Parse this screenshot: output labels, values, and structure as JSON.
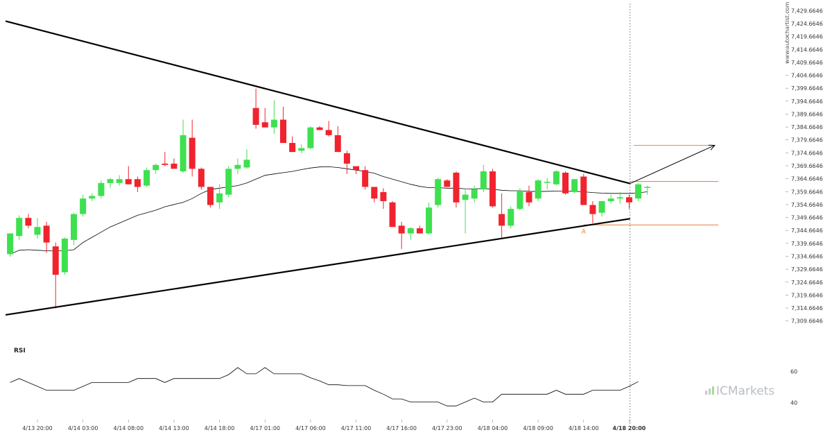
{
  "chart_data": {
    "type": "candlestick",
    "price_ticks": [
      "7,429.6646",
      "7,424.6646",
      "7,419.6646",
      "7,414.6646",
      "7,409.6646",
      "7,404.6646",
      "7,399.6646",
      "7,394.6646",
      "7,389.6646",
      "7,384.6646",
      "7,379.6646",
      "7,374.6646",
      "7,369.6646",
      "7,364.6646",
      "7,359.6646",
      "7,354.6646",
      "7,349.6646",
      "7,344.6646",
      "7,339.6646",
      "7,334.6646",
      "7,329.6646",
      "7,324.6646",
      "7,319.6646",
      "7,314.6646",
      "7,309.6646"
    ],
    "ylim": [
      7307.7,
      7431.9
    ],
    "time_labels": [
      {
        "label": "4/13 20:00",
        "index": 3
      },
      {
        "label": "4/14 03:00",
        "index": 8
      },
      {
        "label": "4/14 08:00",
        "index": 13
      },
      {
        "label": "4/14 13:00",
        "index": 18
      },
      {
        "label": "4/14 18:00",
        "index": 23
      },
      {
        "label": "4/17 01:00",
        "index": 28
      },
      {
        "label": "4/17 06:00",
        "index": 33
      },
      {
        "label": "4/17 11:00",
        "index": 38
      },
      {
        "label": "4/17 16:00",
        "index": 43
      },
      {
        "label": "4/17 23:00",
        "index": 48
      },
      {
        "label": "4/18 04:00",
        "index": 53
      },
      {
        "label": "4/18 09:00",
        "index": 58
      },
      {
        "label": "4/18 14:00",
        "index": 63
      },
      {
        "label": "4/18 20:00",
        "index": 68,
        "bold": true
      }
    ],
    "candles": [
      {
        "o": 7335.5,
        "h": 7343.5,
        "l": 7334.5,
        "c": 7343.5
      },
      {
        "o": 7342.5,
        "h": 7350.5,
        "l": 7341.0,
        "c": 7349.5
      },
      {
        "o": 7349.5,
        "h": 7351.0,
        "l": 7345.5,
        "c": 7346.5
      },
      {
        "o": 7343.0,
        "h": 7349.5,
        "l": 7341.5,
        "c": 7346.0
      },
      {
        "o": 7346.5,
        "h": 7348.0,
        "l": 7336.0,
        "c": 7340.0
      },
      {
        "o": 7338.5,
        "h": 7340.0,
        "l": 7314.5,
        "c": 7327.5
      },
      {
        "o": 7328.5,
        "h": 7342.0,
        "l": 7327.5,
        "c": 7341.5
      },
      {
        "o": 7341.0,
        "h": 7351.5,
        "l": 7339.0,
        "c": 7351.0
      },
      {
        "o": 7351.0,
        "h": 7358.5,
        "l": 7350.0,
        "c": 7357.0
      },
      {
        "o": 7357.0,
        "h": 7359.0,
        "l": 7356.0,
        "c": 7358.0
      },
      {
        "o": 7358.0,
        "h": 7364.0,
        "l": 7357.0,
        "c": 7363.0
      },
      {
        "o": 7363.0,
        "h": 7365.0,
        "l": 7361.0,
        "c": 7364.5
      },
      {
        "o": 7363.0,
        "h": 7366.0,
        "l": 7362.0,
        "c": 7364.5
      },
      {
        "o": 7364.5,
        "h": 7369.5,
        "l": 7362.5,
        "c": 7362.5
      },
      {
        "o": 7364.5,
        "h": 7365.5,
        "l": 7359.5,
        "c": 7361.5
      },
      {
        "o": 7362.0,
        "h": 7369.0,
        "l": 7361.5,
        "c": 7368.0
      },
      {
        "o": 7368.0,
        "h": 7370.5,
        "l": 7366.5,
        "c": 7370.0
      },
      {
        "o": 7370.5,
        "h": 7375.0,
        "l": 7369.5,
        "c": 7370.0
      },
      {
        "o": 7370.5,
        "h": 7372.5,
        "l": 7369.5,
        "c": 7368.5
      },
      {
        "o": 7367.5,
        "h": 7387.5,
        "l": 7367.0,
        "c": 7381.5
      },
      {
        "o": 7380.5,
        "h": 7387.5,
        "l": 7365.5,
        "c": 7368.5
      },
      {
        "o": 7368.5,
        "h": 7369.0,
        "l": 7360.5,
        "c": 7361.5
      },
      {
        "o": 7361.5,
        "h": 7361.5,
        "l": 7353.5,
        "c": 7354.5
      },
      {
        "o": 7355.5,
        "h": 7362.5,
        "l": 7353.0,
        "c": 7359.0
      },
      {
        "o": 7358.5,
        "h": 7369.5,
        "l": 7357.5,
        "c": 7368.5
      },
      {
        "o": 7368.5,
        "h": 7372.5,
        "l": 7366.5,
        "c": 7370.0
      },
      {
        "o": 7369.0,
        "h": 7376.0,
        "l": 7368.5,
        "c": 7372.0
      },
      {
        "o": 7392.0,
        "h": 7399.5,
        "l": 7384.0,
        "c": 7385.5
      },
      {
        "o": 7386.5,
        "h": 7392.0,
        "l": 7384.5,
        "c": 7384.5
      },
      {
        "o": 7384.5,
        "h": 7395.0,
        "l": 7382.0,
        "c": 7387.5
      },
      {
        "o": 7387.5,
        "h": 7392.5,
        "l": 7378.5,
        "c": 7378.5
      },
      {
        "o": 7378.5,
        "h": 7381.0,
        "l": 7375.0,
        "c": 7375.0
      },
      {
        "o": 7375.5,
        "h": 7378.0,
        "l": 7374.5,
        "c": 7376.5
      },
      {
        "o": 7376.5,
        "h": 7385.0,
        "l": 7376.0,
        "c": 7384.5
      },
      {
        "o": 7384.5,
        "h": 7385.0,
        "l": 7383.5,
        "c": 7383.5
      },
      {
        "o": 7383.5,
        "h": 7387.0,
        "l": 7381.0,
        "c": 7381.5
      },
      {
        "o": 7381.5,
        "h": 7385.0,
        "l": 7375.0,
        "c": 7375.0
      },
      {
        "o": 7374.5,
        "h": 7375.5,
        "l": 7366.5,
        "c": 7370.5
      },
      {
        "o": 7369.5,
        "h": 7369.5,
        "l": 7366.5,
        "c": 7368.0
      },
      {
        "o": 7368.0,
        "h": 7369.5,
        "l": 7360.5,
        "c": 7361.5
      },
      {
        "o": 7361.5,
        "h": 7361.5,
        "l": 7355.5,
        "c": 7357.0
      },
      {
        "o": 7359.5,
        "h": 7361.0,
        "l": 7353.0,
        "c": 7356.0
      },
      {
        "o": 7355.5,
        "h": 7356.0,
        "l": 7346.0,
        "c": 7346.0
      },
      {
        "o": 7346.5,
        "h": 7348.0,
        "l": 7337.5,
        "c": 7343.5
      },
      {
        "o": 7343.5,
        "h": 7346.0,
        "l": 7341.0,
        "c": 7345.5
      },
      {
        "o": 7345.5,
        "h": 7346.5,
        "l": 7343.5,
        "c": 7343.5
      },
      {
        "o": 7343.5,
        "h": 7355.5,
        "l": 7343.0,
        "c": 7353.5
      },
      {
        "o": 7354.5,
        "h": 7365.0,
        "l": 7353.5,
        "c": 7364.5
      },
      {
        "o": 7364.0,
        "h": 7364.5,
        "l": 7361.5,
        "c": 7361.5
      },
      {
        "o": 7367.0,
        "h": 7367.5,
        "l": 7353.5,
        "c": 7355.5
      },
      {
        "o": 7356.5,
        "h": 7360.5,
        "l": 7343.5,
        "c": 7358.5
      },
      {
        "o": 7357.0,
        "h": 7362.0,
        "l": 7355.5,
        "c": 7360.5
      },
      {
        "o": 7360.5,
        "h": 7370.0,
        "l": 7359.5,
        "c": 7367.5
      },
      {
        "o": 7367.5,
        "h": 7368.5,
        "l": 7353.5,
        "c": 7354.0
      },
      {
        "o": 7351.0,
        "h": 7359.0,
        "l": 7341.5,
        "c": 7346.5
      },
      {
        "o": 7346.5,
        "h": 7354.0,
        "l": 7345.5,
        "c": 7353.0
      },
      {
        "o": 7353.0,
        "h": 7361.0,
        "l": 7352.5,
        "c": 7360.0
      },
      {
        "o": 7359.5,
        "h": 7362.0,
        "l": 7354.0,
        "c": 7355.5
      },
      {
        "o": 7357.0,
        "h": 7364.5,
        "l": 7356.0,
        "c": 7364.0
      },
      {
        "o": 7363.5,
        "h": 7365.0,
        "l": 7360.5,
        "c": 7363.5
      },
      {
        "o": 7362.5,
        "h": 7368.0,
        "l": 7362.0,
        "c": 7367.5
      },
      {
        "o": 7367.0,
        "h": 7367.5,
        "l": 7358.5,
        "c": 7359.0
      },
      {
        "o": 7359.5,
        "h": 7364.5,
        "l": 7359.0,
        "c": 7364.5
      },
      {
        "o": 7365.5,
        "h": 7366.5,
        "l": 7354.5,
        "c": 7354.5
      },
      {
        "o": 7354.5,
        "h": 7356.0,
        "l": 7347.5,
        "c": 7351.0
      },
      {
        "o": 7351.5,
        "h": 7356.0,
        "l": 7350.0,
        "c": 7356.0
      },
      {
        "o": 7356.0,
        "h": 7358.5,
        "l": 7355.0,
        "c": 7357.0
      },
      {
        "o": 7357.0,
        "h": 7359.5,
        "l": 7355.0,
        "c": 7357.5
      },
      {
        "o": 7357.5,
        "h": 7358.5,
        "l": 7353.0,
        "c": 7355.5
      },
      {
        "o": 7357.0,
        "h": 7363.0,
        "l": 7356.0,
        "c": 7362.5
      },
      {
        "o": 7361.5,
        "h": 7362.0,
        "l": 7358.5,
        "c": 7361.5
      }
    ],
    "moving_average": [
      7335.5,
      7337.0,
      7337.2,
      7337.0,
      7336.8,
      7336.7,
      7336.8,
      7337.2,
      7340.0,
      7342.0,
      7344.0,
      7346.0,
      7347.5,
      7349.0,
      7350.5,
      7351.5,
      7352.5,
      7353.8,
      7354.7,
      7355.5,
      7357.0,
      7359.0,
      7360.5,
      7361.0,
      7361.5,
      7362.0,
      7363.0,
      7364.5,
      7366.0,
      7366.5,
      7367.0,
      7367.5,
      7368.2,
      7368.8,
      7369.2,
      7369.3,
      7369.0,
      7368.5,
      7368.0,
      7367.5,
      7366.8,
      7365.5,
      7364.5,
      7363.5,
      7362.5,
      7361.7,
      7361.2,
      7361.2,
      7361.0,
      7361.0,
      7360.8,
      7360.7,
      7360.9,
      7360.6,
      7360.2,
      7360.0,
      7360.0,
      7359.8,
      7359.7,
      7359.8,
      7359.9,
      7359.9,
      7359.8,
      7359.6,
      7359.3,
      7359.1,
      7359.0,
      7359.0,
      7359.0,
      7359.2,
      7359.6
    ],
    "trendlines": [
      {
        "name": "resistance",
        "from": [
          -0.5,
          7425.6
        ],
        "to": [
          68.1,
          7362.8
        ]
      },
      {
        "name": "support",
        "from": [
          -0.5,
          7312.0
        ],
        "to": [
          68.1,
          7349.2
        ]
      }
    ],
    "projection_arrow": {
      "from": [
        68.1,
        7362.8
      ],
      "to": [
        77.4,
        7377.6
      ]
    },
    "levels": [
      {
        "name": "target",
        "price": 7377.6,
        "from_index": 68.5,
        "to_index": 77.4
      },
      {
        "name": "breakout",
        "price": 7363.6,
        "from_index": 68.1,
        "to_index": 77.8
      },
      {
        "name": "support",
        "price": 7346.8,
        "from_index": 63.0,
        "to_index": 77.8
      }
    ],
    "point_label": {
      "text": "A",
      "index": 63,
      "price": 7344.3
    },
    "vertical_marker_index": 68.1,
    "rsi": {
      "title": "RSI",
      "ticks": [
        60,
        40
      ],
      "ylim": [
        35,
        66
      ],
      "values": [
        53.0,
        55.5,
        53.0,
        50.5,
        48.0,
        48.0,
        48.0,
        48.0,
        50.5,
        53.0,
        53.0,
        53.0,
        53.0,
        53.0,
        55.5,
        55.5,
        55.5,
        53.0,
        55.5,
        55.5,
        55.5,
        55.5,
        55.5,
        55.5,
        58.0,
        62.5,
        58.5,
        58.5,
        62.5,
        58.5,
        58.5,
        58.5,
        58.5,
        56.0,
        54.0,
        51.5,
        51.5,
        51.0,
        51.0,
        51.0,
        48.0,
        45.5,
        42.5,
        42.5,
        40.5,
        40.5,
        40.5,
        40.5,
        38.0,
        38.0,
        40.5,
        43.0,
        40.5,
        40.5,
        45.5,
        45.5,
        45.5,
        45.5,
        45.5,
        45.5,
        48.0,
        45.5,
        45.5,
        45.5,
        48.0,
        48.0,
        48.0,
        48.0,
        50.5,
        53.5
      ]
    },
    "colors": {
      "up": "#3ee04f",
      "down": "#f0232e",
      "level": "#e87a33",
      "line": "#000000"
    }
  },
  "watermark": {
    "vertical": "www.autochartist.com",
    "brand": "ICMarkets"
  }
}
